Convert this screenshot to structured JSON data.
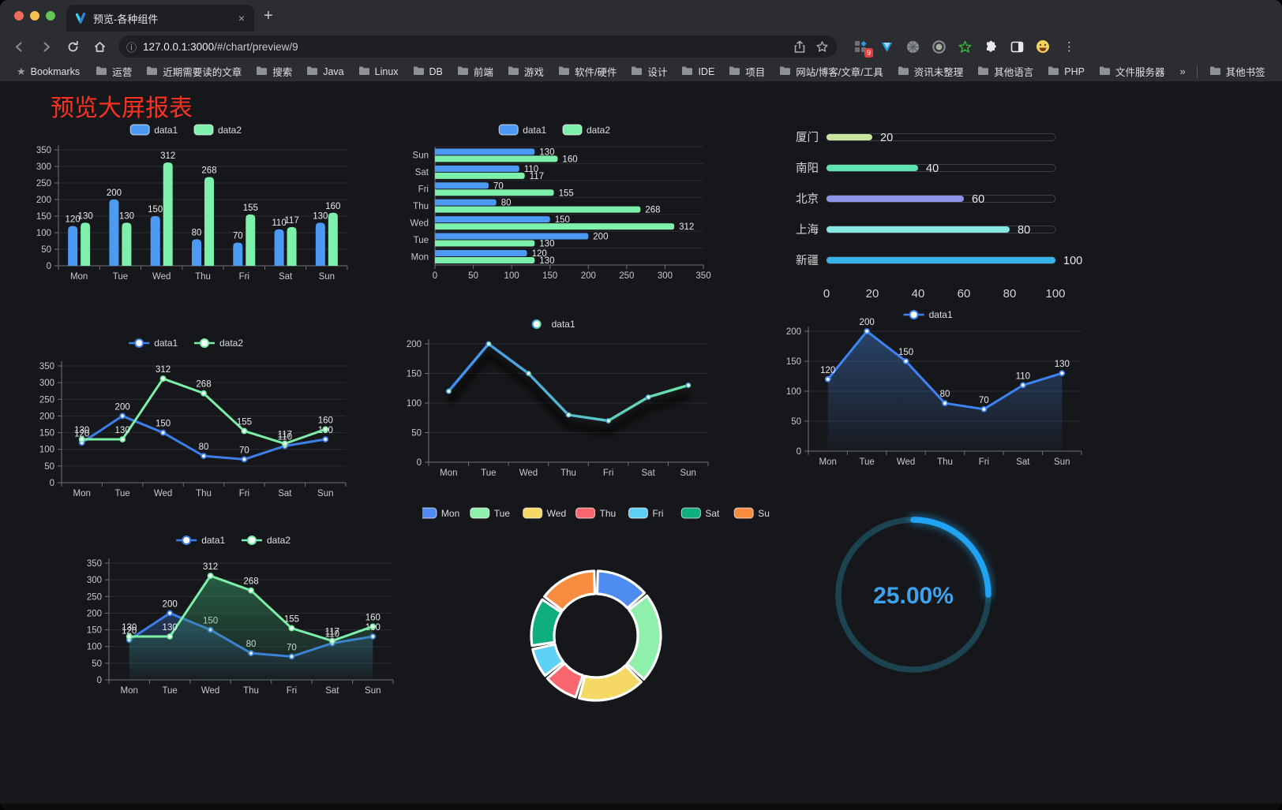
{
  "browser": {
    "window_buttons": [
      "close",
      "minimize",
      "zoom"
    ],
    "tab": {
      "title": "预览-各种组件",
      "close_label": "×",
      "new_tab_label": "+",
      "favicon": "v-logo-icon"
    },
    "url": {
      "host": "127.0.0.1:3000",
      "path": "/#/chart/preview/9",
      "info_icon": "info-icon"
    },
    "toolbar": {
      "nav_icons": [
        "back-icon",
        "forward-icon",
        "reload-icon",
        "home-icon"
      ],
      "pill_icons": [
        "share-icon",
        "bookmark-star-icon"
      ],
      "extensions": [
        {
          "name": "userscript-manager-icon",
          "badge": "9"
        },
        {
          "name": "devtools-gem-icon"
        },
        {
          "name": "gray-globe-icon"
        },
        {
          "name": "recorder-icon"
        },
        {
          "name": "green-star-icon"
        },
        {
          "name": "puzzle-extensions-icon"
        },
        {
          "name": "side-panel-icon"
        },
        {
          "name": "emoji-icon"
        }
      ],
      "menu_icon": "kebab-menu-icon"
    },
    "bookmarks": {
      "star_label": "Bookmarks",
      "items": [
        "运营",
        "近期需要读的文章",
        "搜索",
        "Java",
        "Linux",
        "DB",
        "前端",
        "游戏",
        "软件/硬件",
        "设计",
        "IDE",
        "项目",
        "网站/博客/文章/工具",
        "资讯未整理",
        "其他语言",
        "PHP",
        "文件服务器"
      ],
      "overflow": "»",
      "other_bookmarks": "其他书签"
    }
  },
  "page": {
    "title": "预览大屏报表",
    "title_color": "#FB3222",
    "background": "#16171A"
  },
  "palette": {
    "bar_blue": "#4D9AF5",
    "bar_green": "#7DF0AC",
    "line_blue": "#3D7EEA",
    "line_green": "#7BEFA8",
    "axis_text": "#C6C8CC",
    "axis_line": "#6E7278",
    "grid_line": "#2A2C32",
    "value_label": "#E8E9EB"
  },
  "chart_data": [
    {
      "type": "bar",
      "orient": "vertical",
      "legend_position": "top",
      "value_labels": true,
      "categories": [
        "Mon",
        "Tue",
        "Wed",
        "Thu",
        "Fri",
        "Sat",
        "Sun"
      ],
      "series": [
        {
          "name": "data1",
          "values": [
            120,
            200,
            150,
            80,
            70,
            110,
            130
          ],
          "color": "#4D9AF5"
        },
        {
          "name": "data2",
          "values": [
            130,
            130,
            312,
            268,
            155,
            117,
            160
          ],
          "color": "#7DF0AC"
        }
      ],
      "ylim": [
        0,
        350
      ],
      "ytick_step": 50
    },
    {
      "type": "bar",
      "orient": "horizontal",
      "legend_position": "top",
      "value_labels": true,
      "categories": [
        "Mon",
        "Tue",
        "Wed",
        "Thu",
        "Fri",
        "Sat",
        "Sun"
      ],
      "category_axis_note": "first category at bottom",
      "series": [
        {
          "name": "data1",
          "values": [
            120,
            200,
            150,
            80,
            70,
            110,
            130
          ],
          "color": "#4D9AF5"
        },
        {
          "name": "data2",
          "values": [
            130,
            130,
            312,
            268,
            155,
            117,
            160
          ],
          "color": "#7DF0AC"
        }
      ],
      "xlim": [
        0,
        350
      ],
      "xtick_step": 50
    },
    {
      "type": "progress_bars",
      "rows": [
        {
          "label": "厦门",
          "value": 20,
          "color": "#C8E6A0"
        },
        {
          "label": "南阳",
          "value": 40,
          "color": "#5FE3B1"
        },
        {
          "label": "北京",
          "value": 60,
          "color": "#8F94E8"
        },
        {
          "label": "上海",
          "value": 80,
          "color": "#84E7E2"
        },
        {
          "label": "新疆",
          "value": 100,
          "color": "#38B2E8"
        }
      ],
      "xlim": [
        0,
        100
      ],
      "xticks": [
        0,
        20,
        40,
        60,
        80,
        100
      ]
    },
    {
      "type": "line",
      "legend_position": "top",
      "value_labels": true,
      "categories": [
        "Mon",
        "Tue",
        "Wed",
        "Thu",
        "Fri",
        "Sat",
        "Sun"
      ],
      "series": [
        {
          "name": "data1",
          "values": [
            120,
            200,
            150,
            80,
            70,
            110,
            130
          ],
          "color": "#3D7EEA"
        },
        {
          "name": "data2",
          "values": [
            130,
            130,
            312,
            268,
            155,
            117,
            160
          ],
          "color": "#7BEFA8"
        }
      ],
      "ylim": [
        0,
        350
      ],
      "ytick_step": 50
    },
    {
      "type": "line",
      "variant": "gradient_shadow",
      "legend_position": "top",
      "value_labels": false,
      "categories": [
        "Mon",
        "Tue",
        "Wed",
        "Thu",
        "Fri",
        "Sat",
        "Sun"
      ],
      "series": [
        {
          "name": "data1",
          "values": [
            120,
            200,
            150,
            80,
            70,
            110,
            130
          ],
          "color_gradient": [
            "#3E8EF5",
            "#69E8A8"
          ]
        }
      ],
      "ylim": [
        0,
        200
      ],
      "ytick_step": 50
    },
    {
      "type": "area",
      "legend_position": "top",
      "value_labels": true,
      "categories": [
        "Mon",
        "Tue",
        "Wed",
        "Thu",
        "Fri",
        "Sat",
        "Sun"
      ],
      "series": [
        {
          "name": "data1",
          "values": [
            120,
            200,
            150,
            80,
            70,
            110,
            130
          ],
          "color": "#3F83F2",
          "area_from": "rgba(64,120,200,0.45)",
          "area_to": "rgba(64,120,200,0.04)"
        }
      ],
      "ylim": [
        0,
        200
      ],
      "ytick_step": 50
    },
    {
      "type": "line_area",
      "legend_position": "top",
      "value_labels": true,
      "categories": [
        "Mon",
        "Tue",
        "Wed",
        "Thu",
        "Fri",
        "Sat",
        "Sun"
      ],
      "series": [
        {
          "name": "data1",
          "values": [
            120,
            200,
            150,
            80,
            70,
            110,
            130
          ],
          "color": "#3D7EEA",
          "area_from": "rgba(47,90,160,0.50)",
          "area_to": "rgba(47,90,160,0.03)"
        },
        {
          "name": "data2",
          "values": [
            130,
            130,
            312,
            268,
            155,
            117,
            160
          ],
          "color": "#7BEFA8",
          "area_from": "rgba(52,150,100,0.55)",
          "area_to": "rgba(52,150,100,0.04)"
        }
      ],
      "ylim": [
        0,
        350
      ],
      "ytick_step": 50
    },
    {
      "type": "donut",
      "legend_position": "top",
      "categories": [
        "Mon",
        "Tue",
        "Wed",
        "Thu",
        "Fri",
        "Sat",
        "Sun"
      ],
      "values": [
        120,
        200,
        150,
        80,
        70,
        110,
        130
      ],
      "colors": [
        "#4E8CF2",
        "#8FF0AC",
        "#F6D964",
        "#F8666E",
        "#5ECFF5",
        "#0EAF7C",
        "#F78C3E"
      ]
    },
    {
      "type": "gauge",
      "value": 25,
      "display": "25.00%",
      "color": "#1FA3F2",
      "track_color": "#1B4350",
      "text_color": "#3DA3EE"
    }
  ]
}
